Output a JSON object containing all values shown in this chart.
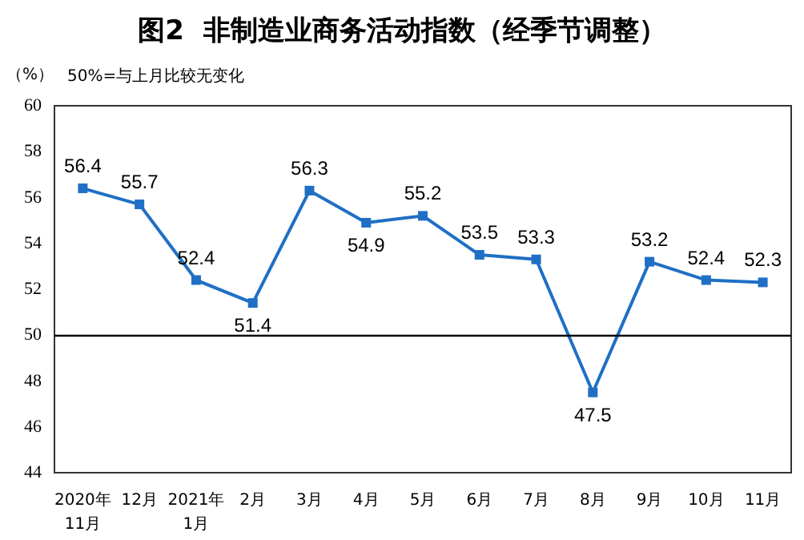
{
  "chart_data": {
    "type": "line",
    "title": "图2  非制造业商务活动指数（经季节调整）",
    "ylabel": "（%）",
    "annotations": [
      "50%=与上月比较无变化"
    ],
    "categories": [
      "2020年\n11月",
      "12月",
      "2021年\n1月",
      "2月",
      "3月",
      "4月",
      "5月",
      "6月",
      "7月",
      "8月",
      "9月",
      "10月",
      "11月"
    ],
    "series": [
      {
        "color": "#1f6fc5",
        "values": [
          56.4,
          55.7,
          52.4,
          51.4,
          56.3,
          54.9,
          55.2,
          53.5,
          53.3,
          47.5,
          53.2,
          52.4,
          52.3
        ]
      }
    ],
    "ylim": [
      44,
      60
    ],
    "yticks": [
      44,
      46,
      48,
      50,
      52,
      54,
      56,
      58,
      60
    ],
    "ref_lines": [
      {
        "axis": "y",
        "value": 50,
        "color": "#000000"
      }
    ],
    "data_labels": true,
    "marker": "square",
    "line_style": "solid",
    "grid": false
  }
}
